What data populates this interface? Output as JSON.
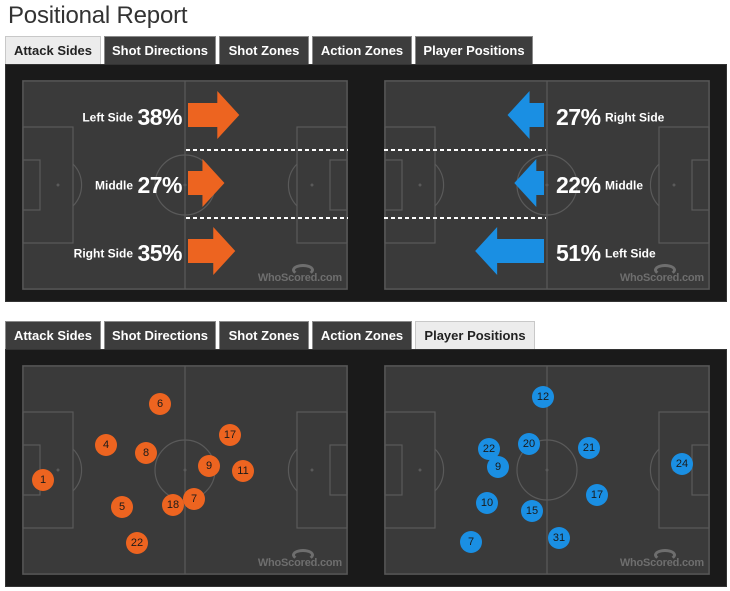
{
  "page_title": "Positional Report",
  "tabs_top": [
    {
      "label": "Attack Sides",
      "active": true
    },
    {
      "label": "Shot Directions",
      "active": false
    },
    {
      "label": "Shot Zones",
      "active": false
    },
    {
      "label": "Action Zones",
      "active": false
    },
    {
      "label": "Player Positions",
      "active": false
    }
  ],
  "tabs_bottom": [
    {
      "label": "Attack Sides",
      "active": false
    },
    {
      "label": "Shot Directions",
      "active": false
    },
    {
      "label": "Shot Zones",
      "active": false
    },
    {
      "label": "Action Zones",
      "active": false
    },
    {
      "label": "Player Positions",
      "active": true
    }
  ],
  "watermark": "WhoScored.com",
  "colors": {
    "home": "#ed6420",
    "away": "#1a8fe3",
    "pitch": "#3a3a3a",
    "panel": "#1a1a1a",
    "lines": "#5a5a5a"
  },
  "attack_sides": {
    "home": [
      {
        "side": "Left Side",
        "pct": "38%",
        "value": 38
      },
      {
        "side": "Middle",
        "pct": "27%",
        "value": 27
      },
      {
        "side": "Right Side",
        "pct": "35%",
        "value": 35
      }
    ],
    "away": [
      {
        "side": "Right Side",
        "pct": "27%",
        "value": 27
      },
      {
        "side": "Middle",
        "pct": "22%",
        "value": 22
      },
      {
        "side": "Left Side",
        "pct": "51%",
        "value": 51
      }
    ]
  },
  "player_positions": {
    "home": [
      "6",
      "17",
      "4",
      "8",
      "9",
      "11",
      "1",
      "5",
      "18",
      "7",
      "22"
    ],
    "away": [
      "12",
      "22",
      "20",
      "21",
      "24",
      "9",
      "17",
      "10",
      "15",
      "31",
      "7"
    ]
  }
}
